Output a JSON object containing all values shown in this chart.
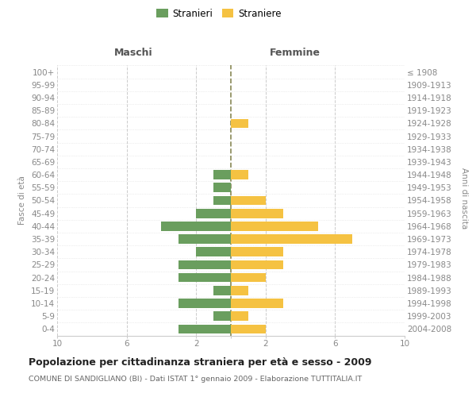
{
  "age_groups": [
    "0-4",
    "5-9",
    "10-14",
    "15-19",
    "20-24",
    "25-29",
    "30-34",
    "35-39",
    "40-44",
    "45-49",
    "50-54",
    "55-59",
    "60-64",
    "65-69",
    "70-74",
    "75-79",
    "80-84",
    "85-89",
    "90-94",
    "95-99",
    "100+"
  ],
  "birth_years": [
    "2004-2008",
    "1999-2003",
    "1994-1998",
    "1989-1993",
    "1984-1988",
    "1979-1983",
    "1974-1978",
    "1969-1973",
    "1964-1968",
    "1959-1963",
    "1954-1958",
    "1949-1953",
    "1944-1948",
    "1939-1943",
    "1934-1938",
    "1929-1933",
    "1924-1928",
    "1919-1923",
    "1914-1918",
    "1909-1913",
    "≤ 1908"
  ],
  "males": [
    3,
    1,
    3,
    1,
    3,
    3,
    2,
    3,
    4,
    2,
    1,
    1,
    1,
    0,
    0,
    0,
    0,
    0,
    0,
    0,
    0
  ],
  "females": [
    2,
    1,
    3,
    1,
    2,
    3,
    3,
    7,
    5,
    3,
    2,
    0,
    1,
    0,
    0,
    0,
    1,
    0,
    0,
    0,
    0
  ],
  "male_color": "#6a9e5e",
  "female_color": "#f5c242",
  "title": "Popolazione per cittadinanza straniera per età e sesso - 2009",
  "subtitle": "COMUNE DI SANDIGLIANO (BI) - Dati ISTAT 1° gennaio 2009 - Elaborazione TUTTITALIA.IT",
  "ylabel_left": "Fasce di età",
  "ylabel_right": "Anni di nascita",
  "header_left": "Maschi",
  "header_right": "Femmine",
  "legend_stranieri": "Stranieri",
  "legend_straniere": "Straniere",
  "xlim": 10,
  "xtick_vals": [
    10,
    6,
    2,
    0,
    2,
    6,
    10
  ],
  "background_color": "#ffffff",
  "grid_color": "#cccccc",
  "center_line_color": "#888855",
  "tick_label_color": "#888888",
  "bar_height": 0.72
}
